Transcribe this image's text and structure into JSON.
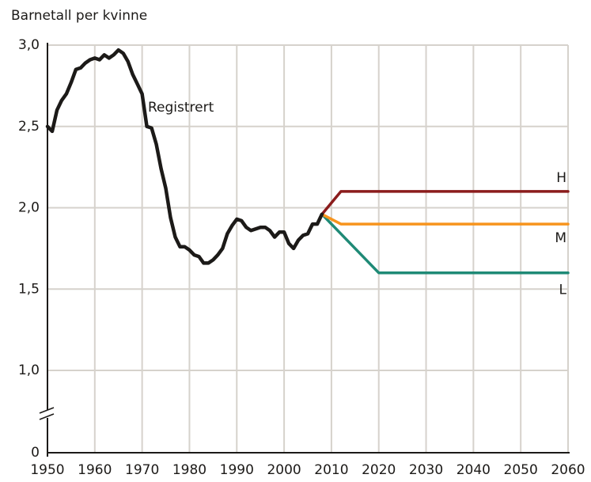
{
  "chart_data": {
    "type": "line",
    "ylabel": "Barnetall per kvinne",
    "xlim": [
      1950,
      2060
    ],
    "xticks": [
      1950,
      1960,
      1970,
      1980,
      1990,
      2000,
      2010,
      2020,
      2030,
      2040,
      2050,
      2060
    ],
    "ylim": [
      0,
      3
    ],
    "yticks": [
      0,
      {
        "value": 1,
        "label": "1,0"
      },
      {
        "value": 1.5,
        "label": "1,5"
      },
      {
        "value": 2,
        "label": "2,0"
      },
      {
        "value": 2.5,
        "label": "2,5"
      },
      {
        "value": 3,
        "label": "3,0"
      }
    ],
    "y_axis_break": true,
    "grid": true,
    "series": [
      {
        "name": "Registrert",
        "color": "#1c1a18",
        "x": [
          1950,
          1951,
          1952,
          1953,
          1954,
          1955,
          1956,
          1957,
          1958,
          1959,
          1960,
          1961,
          1962,
          1963,
          1964,
          1965,
          1966,
          1967,
          1968,
          1969,
          1970,
          1971,
          1972,
          1973,
          1974,
          1975,
          1976,
          1977,
          1978,
          1979,
          1980,
          1981,
          1982,
          1983,
          1984,
          1985,
          1986,
          1987,
          1988,
          1989,
          1990,
          1991,
          1992,
          1993,
          1994,
          1995,
          1996,
          1997,
          1998,
          1999,
          2000,
          2001,
          2002,
          2003,
          2004,
          2005,
          2006,
          2007,
          2008
        ],
        "values": [
          2.5,
          2.47,
          2.6,
          2.66,
          2.7,
          2.77,
          2.85,
          2.86,
          2.89,
          2.91,
          2.92,
          2.91,
          2.94,
          2.92,
          2.94,
          2.97,
          2.95,
          2.9,
          2.82,
          2.76,
          2.7,
          2.5,
          2.49,
          2.39,
          2.24,
          2.12,
          1.94,
          1.82,
          1.76,
          1.76,
          1.74,
          1.71,
          1.7,
          1.66,
          1.66,
          1.68,
          1.71,
          1.75,
          1.84,
          1.89,
          1.93,
          1.92,
          1.88,
          1.86,
          1.87,
          1.88,
          1.88,
          1.86,
          1.82,
          1.85,
          1.85,
          1.78,
          1.75,
          1.8,
          1.83,
          1.84,
          1.9,
          1.9,
          1.96
        ]
      },
      {
        "name": "H",
        "color": "#8b1c1c",
        "x": [
          2008,
          2012,
          2060
        ],
        "values": [
          1.96,
          2.1,
          2.1
        ]
      },
      {
        "name": "M",
        "color": "#f7941d",
        "x": [
          2008,
          2012,
          2060
        ],
        "values": [
          1.96,
          1.9,
          1.9
        ]
      },
      {
        "name": "L",
        "color": "#1f8a76",
        "x": [
          2008,
          2020,
          2060
        ],
        "values": [
          1.96,
          1.6,
          1.6
        ]
      }
    ]
  }
}
